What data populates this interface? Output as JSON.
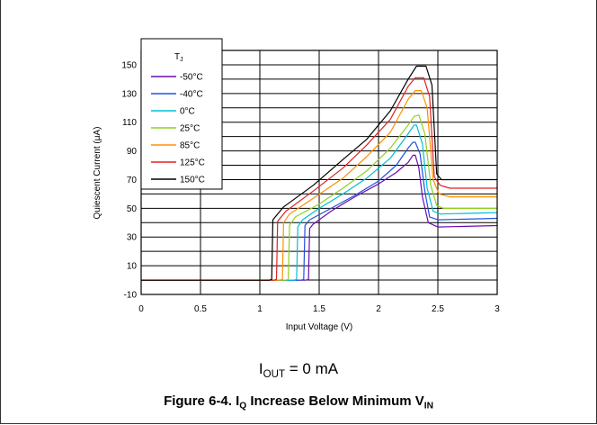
{
  "chart_data": {
    "type": "line",
    "xlabel": "Input Voltage (V)",
    "ylabel": "Quiescent Current (μA)",
    "xlim": [
      0,
      3
    ],
    "ylim": [
      -10,
      160
    ],
    "xticks": [
      0,
      0.5,
      1,
      1.5,
      2,
      2.5,
      3
    ],
    "xtick_labels": [
      "0",
      "0.5",
      "1",
      "1.5",
      "2",
      "2.5",
      "3"
    ],
    "yticks": [
      -10,
      10,
      30,
      50,
      70,
      90,
      110,
      130,
      150
    ],
    "ytick_labels": [
      "-10",
      "10",
      "30",
      "50",
      "70",
      "90",
      "110",
      "130",
      "150"
    ],
    "grid": true,
    "legend": {
      "title": "T",
      "title_sub": "J",
      "position": "top-left"
    },
    "series": [
      {
        "name": "-50°C",
        "color": "#6a0dad",
        "points": [
          [
            0,
            0
          ],
          [
            0.1,
            0
          ],
          [
            1.39,
            0
          ],
          [
            1.41,
            0.5
          ],
          [
            1.42,
            36
          ],
          [
            1.45,
            39
          ],
          [
            1.6,
            48
          ],
          [
            1.8,
            58
          ],
          [
            2.0,
            67
          ],
          [
            2.15,
            75
          ],
          [
            2.25,
            82
          ],
          [
            2.29,
            87
          ],
          [
            2.31,
            87
          ],
          [
            2.34,
            78
          ],
          [
            2.37,
            58
          ],
          [
            2.42,
            40
          ],
          [
            2.5,
            37
          ],
          [
            3.0,
            38
          ]
        ]
      },
      {
        "name": "-40°C",
        "color": "#2050e0",
        "points": [
          [
            0,
            0
          ],
          [
            0.1,
            0
          ],
          [
            1.35,
            0
          ],
          [
            1.37,
            0.5
          ],
          [
            1.38,
            38
          ],
          [
            1.42,
            42
          ],
          [
            1.6,
            50
          ],
          [
            1.8,
            59
          ],
          [
            2.0,
            69
          ],
          [
            2.15,
            80
          ],
          [
            2.25,
            92
          ],
          [
            2.29,
            96
          ],
          [
            2.31,
            96
          ],
          [
            2.35,
            88
          ],
          [
            2.39,
            62
          ],
          [
            2.43,
            44
          ],
          [
            2.5,
            42
          ],
          [
            3.0,
            43
          ]
        ]
      },
      {
        "name": "0°C",
        "color": "#00c0d0",
        "points": [
          [
            0,
            0
          ],
          [
            0.1,
            0
          ],
          [
            1.29,
            0
          ],
          [
            1.31,
            0.5
          ],
          [
            1.32,
            37
          ],
          [
            1.36,
            42
          ],
          [
            1.5,
            50
          ],
          [
            1.7,
            60
          ],
          [
            1.9,
            71
          ],
          [
            2.1,
            85
          ],
          [
            2.25,
            102
          ],
          [
            2.3,
            108
          ],
          [
            2.32,
            108
          ],
          [
            2.37,
            95
          ],
          [
            2.41,
            64
          ],
          [
            2.46,
            48
          ],
          [
            2.52,
            46
          ],
          [
            3.0,
            47
          ]
        ]
      },
      {
        "name": "25°C",
        "color": "#90d020",
        "points": [
          [
            0,
            0
          ],
          [
            0.1,
            0
          ],
          [
            1.22,
            0
          ],
          [
            1.24,
            0.5
          ],
          [
            1.25,
            38
          ],
          [
            1.3,
            44
          ],
          [
            1.5,
            53
          ],
          [
            1.7,
            64
          ],
          [
            1.9,
            76
          ],
          [
            2.1,
            92
          ],
          [
            2.25,
            108
          ],
          [
            2.3,
            114
          ],
          [
            2.34,
            115
          ],
          [
            2.39,
            102
          ],
          [
            2.44,
            66
          ],
          [
            2.49,
            52
          ],
          [
            2.55,
            50
          ],
          [
            3.0,
            50
          ]
        ]
      },
      {
        "name": "85°C",
        "color": "#ff9000",
        "points": [
          [
            0,
            0
          ],
          [
            0.1,
            0
          ],
          [
            1.17,
            0
          ],
          [
            1.19,
            0.5
          ],
          [
            1.2,
            40
          ],
          [
            1.25,
            46
          ],
          [
            1.45,
            57
          ],
          [
            1.7,
            71
          ],
          [
            1.9,
            86
          ],
          [
            2.1,
            103
          ],
          [
            2.25,
            126
          ],
          [
            2.31,
            132
          ],
          [
            2.36,
            132
          ],
          [
            2.41,
            120
          ],
          [
            2.46,
            70
          ],
          [
            2.51,
            60
          ],
          [
            2.6,
            58
          ],
          [
            3.0,
            58
          ]
        ]
      },
      {
        "name": "125°C",
        "color": "#e02020",
        "points": [
          [
            0,
            0
          ],
          [
            0.1,
            0
          ],
          [
            1.12,
            0
          ],
          [
            1.14,
            0.5
          ],
          [
            1.15,
            41
          ],
          [
            1.22,
            48
          ],
          [
            1.45,
            62
          ],
          [
            1.7,
            78
          ],
          [
            1.9,
            94
          ],
          [
            2.1,
            112
          ],
          [
            2.25,
            135
          ],
          [
            2.31,
            141
          ],
          [
            2.38,
            141
          ],
          [
            2.43,
            128
          ],
          [
            2.47,
            72
          ],
          [
            2.52,
            66
          ],
          [
            2.6,
            64
          ],
          [
            3.0,
            64
          ]
        ]
      },
      {
        "name": "150°C",
        "color": "#000000",
        "points": [
          [
            0,
            0
          ],
          [
            0.1,
            0
          ],
          [
            1.08,
            0
          ],
          [
            1.1,
            0.5
          ],
          [
            1.11,
            42
          ],
          [
            1.2,
            51
          ],
          [
            1.45,
            66
          ],
          [
            1.7,
            84
          ],
          [
            1.9,
            98
          ],
          [
            2.1,
            118
          ],
          [
            2.25,
            140
          ],
          [
            2.32,
            149
          ],
          [
            2.4,
            149
          ],
          [
            2.45,
            136
          ],
          [
            2.49,
            74
          ],
          [
            2.53,
            70
          ],
          [
            2.65,
            70
          ],
          [
            3.0,
            70
          ]
        ]
      }
    ]
  },
  "conditions": {
    "var": "I",
    "sub": "OUT",
    "rest": " = 0 mA"
  },
  "caption": {
    "prefix": "Figure 6-4. I",
    "sub1": "Q",
    "mid": " Increase Below Minimum V",
    "sub2": "IN"
  }
}
